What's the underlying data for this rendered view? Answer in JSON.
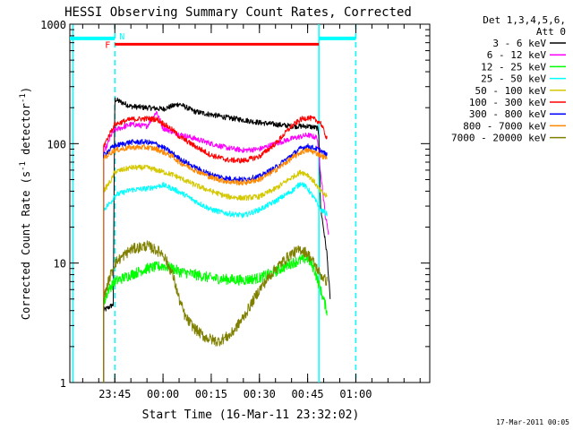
{
  "chart_data": {
    "type": "line",
    "title": "HESSI Observing Summary Count Rates, Corrected",
    "xlabel": "Start Time (16-Mar-11 23:32:02)",
    "ylabel_parts": [
      "Corrected Count Rate (s",
      "-1",
      " detector",
      "-1",
      ")"
    ],
    "yscale": "log",
    "ylim": [
      1,
      1000
    ],
    "xlim_min": [
      -14,
      98
    ],
    "x_ticks": [
      {
        "label": "23:45",
        "min": 0
      },
      {
        "label": "00:00",
        "min": 15
      },
      {
        "label": "00:15",
        "min": 30
      },
      {
        "label": "00:30",
        "min": 45
      },
      {
        "label": "00:45",
        "min": 60
      },
      {
        "label": "01:00",
        "min": 75
      }
    ],
    "y_ticks": [
      {
        "label": "1",
        "value": 1
      },
      {
        "label": "10",
        "value": 10
      },
      {
        "label": "100",
        "value": 100
      },
      {
        "label": "1000",
        "value": 1000
      }
    ],
    "legend_header": [
      "Det 1,3,4,5,6,",
      "Att 0"
    ],
    "legend_position": "right",
    "series": [
      {
        "name": "3 - 6 keV",
        "color": "#000000",
        "points": [
          [
            -3.5,
            4
          ],
          [
            -0.5,
            4.5
          ],
          [
            0,
            235
          ],
          [
            5,
            205
          ],
          [
            10,
            200
          ],
          [
            15,
            195
          ],
          [
            20,
            215
          ],
          [
            25,
            185
          ],
          [
            30,
            175
          ],
          [
            35,
            165
          ],
          [
            40,
            158
          ],
          [
            45,
            150
          ],
          [
            50,
            145
          ],
          [
            55,
            140
          ],
          [
            60,
            140
          ],
          [
            63,
            135
          ],
          [
            63.5,
            120
          ],
          [
            64,
            30
          ],
          [
            66,
            12
          ],
          [
            67,
            5
          ]
        ]
      },
      {
        "name": "6 - 12 keV",
        "color": "#ff00ff",
        "points": [
          [
            -3.5,
            82
          ],
          [
            -1,
            120
          ],
          [
            0,
            130
          ],
          [
            5,
            145
          ],
          [
            10,
            140
          ],
          [
            13,
            185
          ],
          [
            15,
            135
          ],
          [
            20,
            120
          ],
          [
            25,
            110
          ],
          [
            30,
            100
          ],
          [
            35,
            92
          ],
          [
            40,
            88
          ],
          [
            45,
            90
          ],
          [
            50,
            100
          ],
          [
            55,
            110
          ],
          [
            60,
            118
          ],
          [
            63,
            112
          ],
          [
            64,
            60
          ],
          [
            65.5,
            25
          ],
          [
            66.5,
            18
          ]
        ]
      },
      {
        "name": "12 - 25 keV",
        "color": "#00ff00",
        "points": [
          [
            -3.5,
            4.5
          ],
          [
            -2,
            6
          ],
          [
            0,
            7
          ],
          [
            5,
            8
          ],
          [
            10,
            9
          ],
          [
            15,
            9.5
          ],
          [
            18,
            9
          ],
          [
            20,
            8.5
          ],
          [
            25,
            8
          ],
          [
            30,
            7.5
          ],
          [
            35,
            7.3
          ],
          [
            40,
            7.2
          ],
          [
            45,
            7.5
          ],
          [
            50,
            8.5
          ],
          [
            55,
            10
          ],
          [
            60,
            11
          ],
          [
            62,
            9
          ],
          [
            64,
            6
          ],
          [
            66,
            4
          ]
        ]
      },
      {
        "name": "25 - 50 keV",
        "color": "#00ffff",
        "points": [
          [
            -3.5,
            28
          ],
          [
            -1,
            33
          ],
          [
            0,
            37
          ],
          [
            5,
            41
          ],
          [
            10,
            42
          ],
          [
            15,
            45
          ],
          [
            18,
            42
          ],
          [
            22,
            37
          ],
          [
            25,
            33
          ],
          [
            30,
            28
          ],
          [
            35,
            26
          ],
          [
            40,
            25
          ],
          [
            45,
            28
          ],
          [
            50,
            33
          ],
          [
            55,
            40
          ],
          [
            58,
            47
          ],
          [
            60,
            42
          ],
          [
            62,
            35
          ],
          [
            64,
            28
          ],
          [
            66,
            26
          ]
        ]
      },
      {
        "name": "50 - 100 keV",
        "color": "#d4c800",
        "points": [
          [
            -3.5,
            40
          ],
          [
            -1,
            50
          ],
          [
            0,
            58
          ],
          [
            5,
            63
          ],
          [
            10,
            63
          ],
          [
            13,
            60
          ],
          [
            15,
            58
          ],
          [
            18,
            55
          ],
          [
            20,
            52
          ],
          [
            25,
            45
          ],
          [
            30,
            40
          ],
          [
            35,
            36
          ],
          [
            40,
            35
          ],
          [
            45,
            36
          ],
          [
            50,
            42
          ],
          [
            55,
            52
          ],
          [
            58,
            58
          ],
          [
            60,
            55
          ],
          [
            62,
            48
          ],
          [
            64,
            40
          ],
          [
            66,
            36
          ]
        ]
      },
      {
        "name": "100 - 300 keV",
        "color": "#ff0000",
        "points": [
          [
            -3.5,
            95
          ],
          [
            -1,
            130
          ],
          [
            0,
            145
          ],
          [
            5,
            160
          ],
          [
            10,
            162
          ],
          [
            13,
            160
          ],
          [
            15,
            148
          ],
          [
            18,
            130
          ],
          [
            20,
            115
          ],
          [
            25,
            95
          ],
          [
            30,
            80
          ],
          [
            35,
            73
          ],
          [
            40,
            72
          ],
          [
            45,
            78
          ],
          [
            50,
            100
          ],
          [
            55,
            140
          ],
          [
            58,
            160
          ],
          [
            60,
            165
          ],
          [
            62,
            160
          ],
          [
            64,
            150
          ],
          [
            66,
            110
          ]
        ]
      },
      {
        "name": "300 - 800 keV",
        "color": "#0000ff",
        "points": [
          [
            -3.5,
            80
          ],
          [
            -1,
            92
          ],
          [
            0,
            96
          ],
          [
            5,
            103
          ],
          [
            10,
            103
          ],
          [
            13,
            99
          ],
          [
            15,
            93
          ],
          [
            18,
            83
          ],
          [
            20,
            75
          ],
          [
            25,
            63
          ],
          [
            30,
            55
          ],
          [
            35,
            51
          ],
          [
            40,
            50
          ],
          [
            45,
            53
          ],
          [
            50,
            63
          ],
          [
            55,
            80
          ],
          [
            58,
            92
          ],
          [
            60,
            95
          ],
          [
            62,
            92
          ],
          [
            64,
            88
          ],
          [
            66,
            80
          ]
        ]
      },
      {
        "name": "800 - 7000 keV",
        "color": "#ff8800",
        "points": [
          [
            -3.5,
            75
          ],
          [
            -1,
            85
          ],
          [
            0,
            88
          ],
          [
            5,
            93
          ],
          [
            10,
            93
          ],
          [
            13,
            90
          ],
          [
            15,
            85
          ],
          [
            18,
            78
          ],
          [
            20,
            70
          ],
          [
            25,
            60
          ],
          [
            30,
            52
          ],
          [
            35,
            48
          ],
          [
            40,
            47
          ],
          [
            45,
            50
          ],
          [
            50,
            60
          ],
          [
            55,
            75
          ],
          [
            58,
            85
          ],
          [
            60,
            88
          ],
          [
            62,
            85
          ],
          [
            64,
            80
          ],
          [
            66,
            75
          ]
        ]
      },
      {
        "name": "7000 - 20000 keV",
        "color": "#808000",
        "points": [
          [
            -3.5,
            5
          ],
          [
            -2,
            7
          ],
          [
            0,
            10
          ],
          [
            5,
            13
          ],
          [
            10,
            14
          ],
          [
            15,
            12
          ],
          [
            18,
            8
          ],
          [
            20,
            5
          ],
          [
            22,
            3.5
          ],
          [
            25,
            2.8
          ],
          [
            28,
            2.4
          ],
          [
            32,
            2.2
          ],
          [
            36,
            2.5
          ],
          [
            40,
            3.5
          ],
          [
            45,
            6
          ],
          [
            50,
            9
          ],
          [
            55,
            12
          ],
          [
            58,
            13
          ],
          [
            60,
            12
          ],
          [
            62,
            10
          ],
          [
            64,
            8
          ],
          [
            66,
            7
          ]
        ]
      }
    ],
    "markers": {
      "flare_bar": {
        "label": "F",
        "color": "#ff0000",
        "from_min": 0,
        "to_min": 63.5,
        "value": 680
      },
      "night_bar": {
        "label": "N",
        "color": "#00ffff",
        "segments": [
          [
            -14,
            0
          ],
          [
            63.5,
            75
          ]
        ],
        "value": 760
      },
      "solid_lines_min": [
        -13,
        63.5
      ],
      "dashed_lines_min": [
        0,
        75
      ]
    },
    "footer_date": "17-Mar-2011 00:05"
  }
}
